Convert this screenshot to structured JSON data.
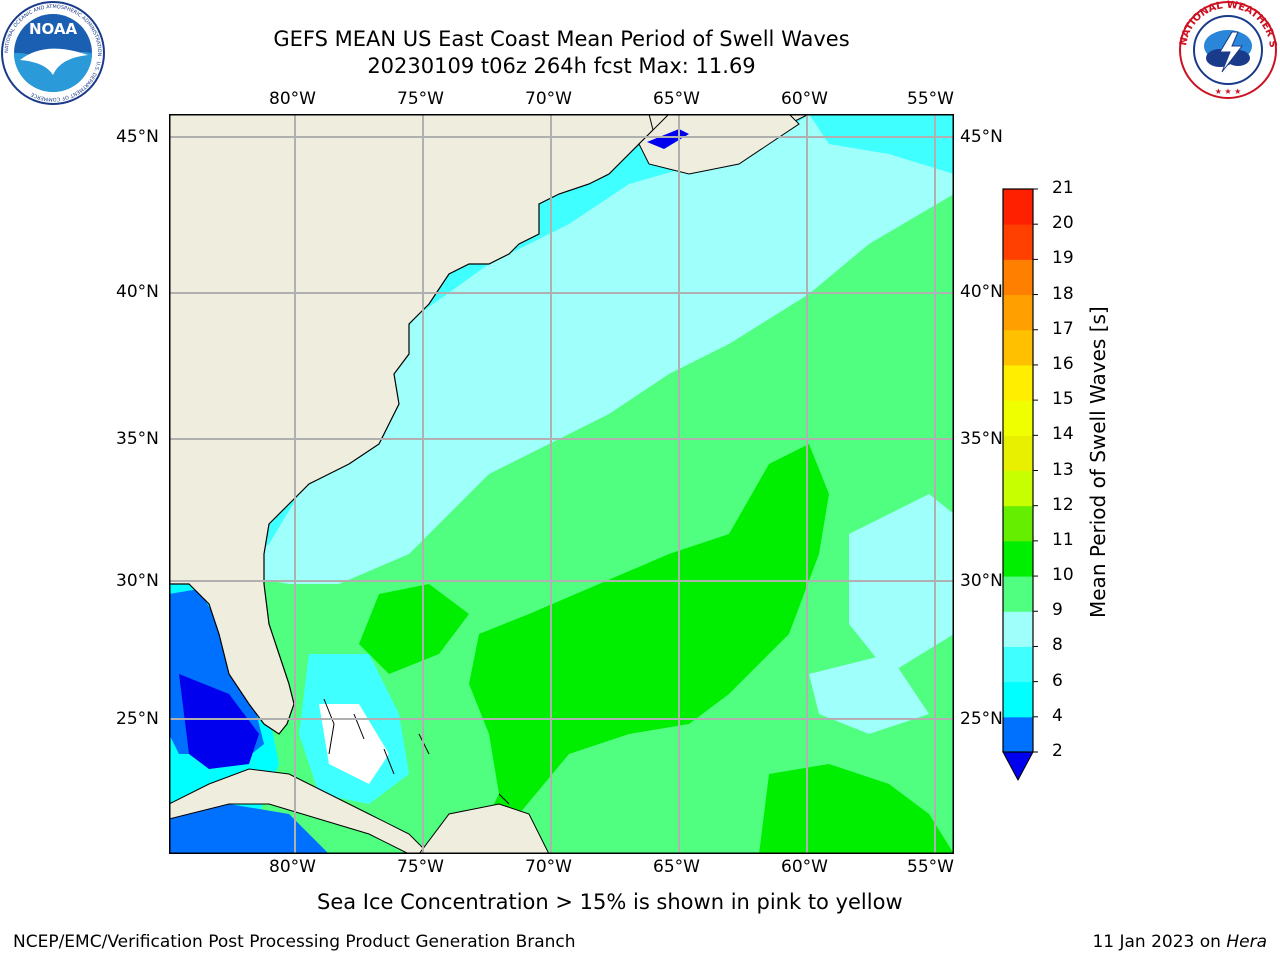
{
  "header": {
    "title_line1": "GEFS MEAN US East Coast Mean Period of Swell Waves",
    "title_line2": "20230109 t06z 264h fcst   Max: 11.69"
  },
  "map": {
    "lon_labels": [
      "80°W",
      "75°W",
      "70°W",
      "65°W",
      "60°W",
      "55°W"
    ],
    "lat_labels": [
      "45°N",
      "40°N",
      "35°N",
      "30°N",
      "25°N"
    ],
    "lon_values": [
      -80,
      -75,
      -70,
      -65,
      -60,
      -55
    ],
    "lat_values": [
      45,
      40,
      35,
      30,
      25
    ],
    "lon_range": [
      -85,
      -54.2
    ],
    "lat_range": [
      20.5,
      45.8
    ],
    "land_color": "#efedde",
    "grid_color": "#b0b0b0"
  },
  "colorbar": {
    "label": "Mean Period of Swell Waves [s]",
    "ticks": [
      "2",
      "4",
      "6",
      "8",
      "9",
      "10",
      "11",
      "12",
      "13",
      "14",
      "15",
      "16",
      "17",
      "18",
      "19",
      "20",
      "21"
    ],
    "colors": [
      "#0070ff",
      "#00ffff",
      "#40ffff",
      "#9efffb",
      "#50ff80",
      "#00ee00",
      "#66ee00",
      "#c8ff00",
      "#e8f000",
      "#f0ff00",
      "#ffee00",
      "#ffc000",
      "#ffa000",
      "#ff8000",
      "#ff4000",
      "#ff2000"
    ],
    "under_color": "#0000ee"
  },
  "logos": {
    "noaa_text": "NOAA",
    "noaa_ring": "NATIONAL OCEANIC AND ATMOSPHERIC ADMINISTRATION · U.S. DEPARTMENT OF COMMERCE",
    "nws_ring": "NATIONAL WEATHER SERVICE"
  },
  "caption": "Sea Ice Concentration > 15% is shown in pink to yellow",
  "footer": {
    "left": "NCEP/EMC/Verification Post Processing Product Generation Branch",
    "right_date": "11 Jan 2023 on ",
    "right_machine": "Hera"
  }
}
